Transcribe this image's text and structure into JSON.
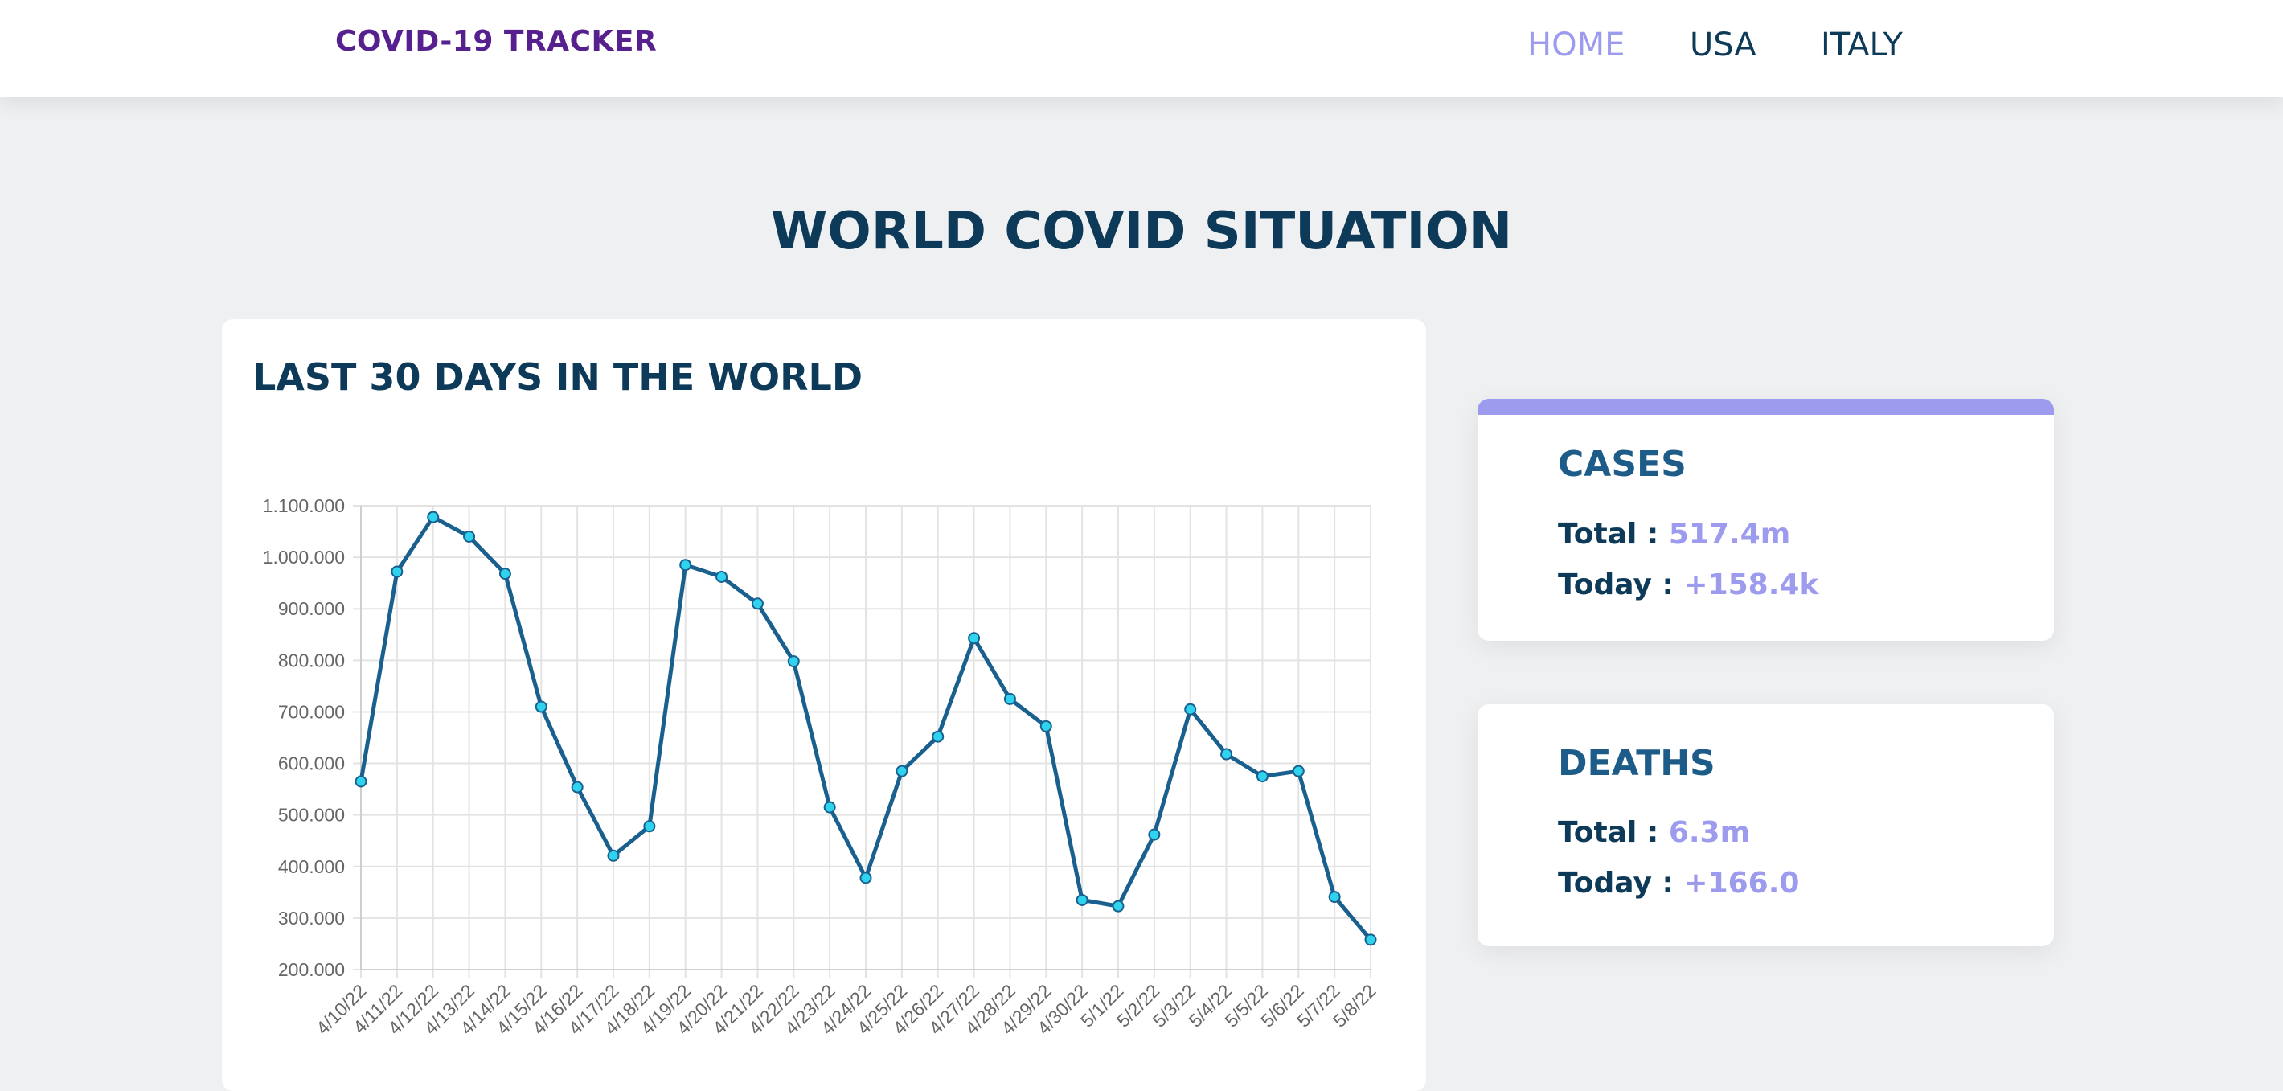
{
  "brand": "COVID-19 TRACKER",
  "nav": {
    "items": [
      {
        "label": "HOME",
        "active": true
      },
      {
        "label": "USA",
        "active": false
      },
      {
        "label": "ITALY",
        "active": false
      }
    ]
  },
  "page_title": "WORLD COVID SITUATION",
  "chart_card": {
    "title": "LAST 30 DAYS IN THE WORLD"
  },
  "chart_data": {
    "type": "line",
    "title": "",
    "xlabel": "",
    "ylabel": "",
    "ylim": [
      200000,
      1100000
    ],
    "ytick_step": 100000,
    "ytick_labels": [
      "200.000",
      "300.000",
      "400.000",
      "500.000",
      "600.000",
      "700.000",
      "800.000",
      "900.000",
      "1.000.000",
      "1.100.000"
    ],
    "grid": true,
    "x": [
      "4/10/22",
      "4/11/22",
      "4/12/22",
      "4/13/22",
      "4/14/22",
      "4/15/22",
      "4/16/22",
      "4/17/22",
      "4/18/22",
      "4/19/22",
      "4/20/22",
      "4/21/22",
      "4/22/22",
      "4/23/22",
      "4/24/22",
      "4/25/22",
      "4/26/22",
      "4/27/22",
      "4/28/22",
      "4/29/22",
      "4/30/22",
      "5/1/22",
      "5/2/22",
      "5/3/22",
      "5/4/22",
      "5/5/22",
      "5/6/22",
      "5/7/22",
      "5/8/22"
    ],
    "series": [
      {
        "values": [
          565000,
          972000,
          1078000,
          1040000,
          968000,
          710000,
          554000,
          421000,
          478000,
          985000,
          962000,
          910000,
          798000,
          515000,
          378000,
          585000,
          652000,
          843000,
          725000,
          672000,
          335000,
          323000,
          462000,
          705000,
          618000,
          575000,
          585000,
          341000,
          258000
        ],
        "color": "#19608f",
        "point_color": "#2fd3ee"
      }
    ]
  },
  "cases": {
    "heading": "CASES",
    "total_label": "Total :",
    "total_value": "517.4m",
    "today_label": "Today :",
    "today_value": "+158.4k"
  },
  "deaths": {
    "heading": "DEATHS",
    "total_label": "Total :",
    "total_value": "6.3m",
    "today_label": "Today :",
    "today_value": "+166.0"
  },
  "colors": {
    "brand": "#56208f",
    "accent": "#9d9bee",
    "heading": "#0d3a58",
    "background": "#eff0f2"
  }
}
